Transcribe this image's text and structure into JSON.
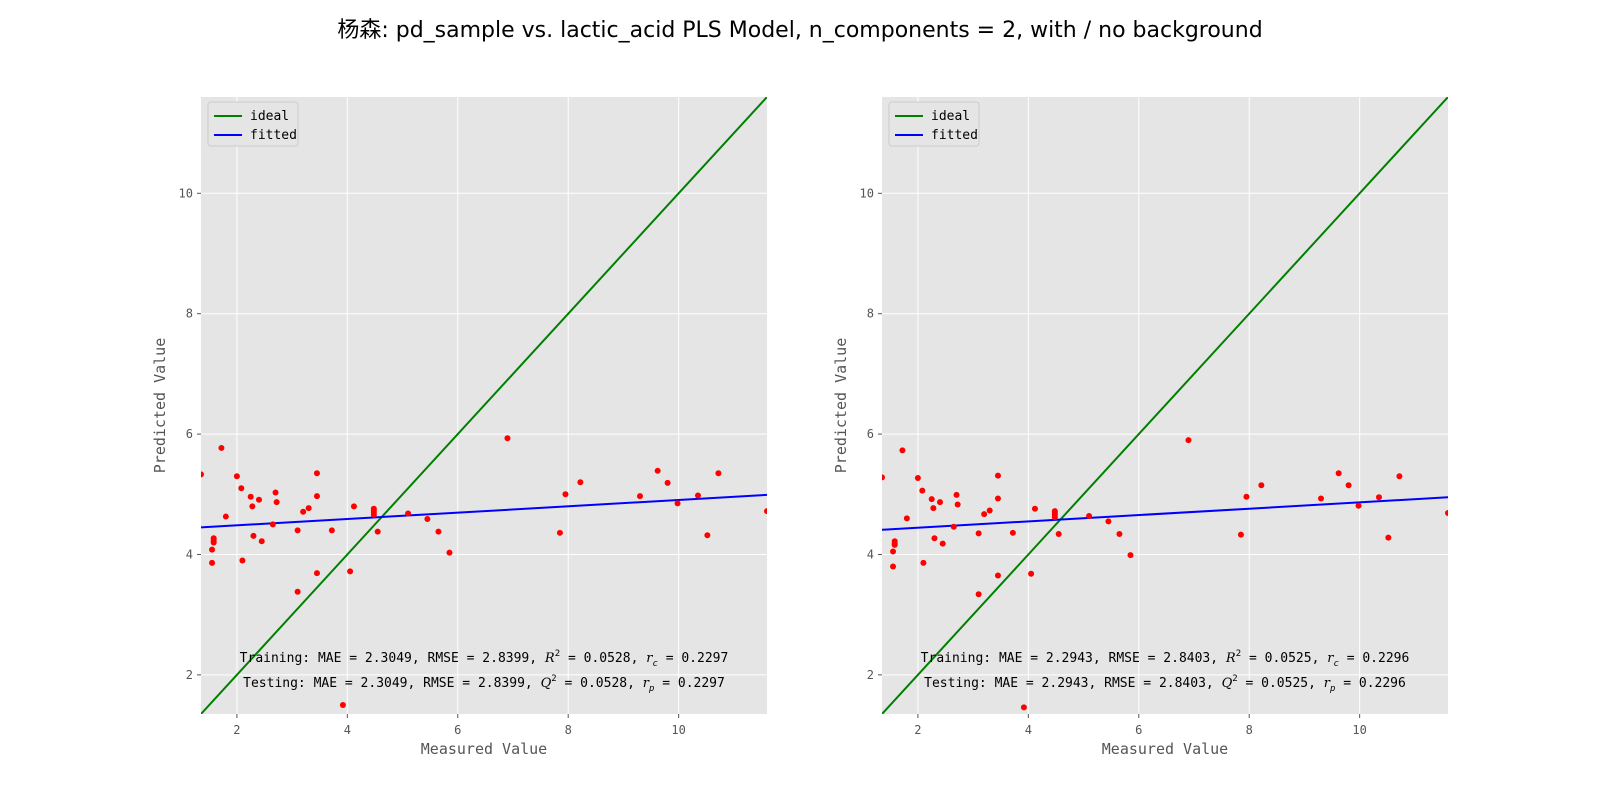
{
  "figure": {
    "title": "杨森: pd_sample vs. lactic_acid PLS Model, n_components = 2, with / no background",
    "colors": {
      "background": "#e5e5e5",
      "grid": "#ffffff",
      "ideal": "#008000",
      "fitted": "#0000ff",
      "points": "#ff0000",
      "legend_bg": "#e5e5e5"
    }
  },
  "chart_data": [
    {
      "type": "scatter",
      "xlabel": "Measured Value",
      "ylabel": "Predicted Value",
      "xlim": [
        1.35,
        11.6
      ],
      "ylim": [
        1.35,
        11.6
      ],
      "xticks": [
        2,
        4,
        6,
        8,
        10
      ],
      "yticks": [
        2,
        4,
        6,
        8,
        10
      ],
      "grid": true,
      "legend": {
        "placement": "upper-left",
        "entries": [
          "ideal",
          "fitted"
        ]
      },
      "ideal_line": {
        "x": [
          1.35,
          11.6
        ],
        "y": [
          1.35,
          11.6
        ]
      },
      "fitted_line": {
        "x": [
          1.35,
          11.6
        ],
        "y": [
          4.45,
          4.99
        ]
      },
      "points": [
        [
          1.35,
          5.33
        ],
        [
          1.58,
          4.27
        ],
        [
          1.58,
          4.23
        ],
        [
          1.58,
          4.2
        ],
        [
          1.55,
          4.08
        ],
        [
          1.55,
          3.86
        ],
        [
          1.72,
          5.77
        ],
        [
          1.8,
          4.63
        ],
        [
          2.0,
          5.3
        ],
        [
          2.08,
          5.1
        ],
        [
          2.1,
          3.9
        ],
        [
          2.25,
          4.96
        ],
        [
          2.28,
          4.8
        ],
        [
          2.3,
          4.31
        ],
        [
          2.4,
          4.91
        ],
        [
          2.45,
          4.22
        ],
        [
          2.65,
          4.5
        ],
        [
          2.7,
          5.03
        ],
        [
          2.72,
          4.87
        ],
        [
          3.1,
          4.4
        ],
        [
          3.1,
          3.38
        ],
        [
          3.2,
          4.71
        ],
        [
          3.3,
          4.77
        ],
        [
          3.45,
          5.35
        ],
        [
          3.45,
          4.97
        ],
        [
          3.45,
          3.69
        ],
        [
          3.72,
          4.4
        ],
        [
          4.05,
          3.72
        ],
        [
          4.12,
          4.8
        ],
        [
          3.92,
          1.5
        ],
        [
          4.48,
          4.76
        ],
        [
          4.48,
          4.73
        ],
        [
          4.48,
          4.7
        ],
        [
          4.48,
          4.66
        ],
        [
          4.55,
          4.38
        ],
        [
          5.1,
          4.68
        ],
        [
          5.45,
          4.59
        ],
        [
          5.65,
          4.38
        ],
        [
          5.85,
          4.03
        ],
        [
          6.9,
          5.93
        ],
        [
          7.85,
          4.36
        ],
        [
          7.95,
          5.0
        ],
        [
          8.22,
          5.2
        ],
        [
          9.3,
          4.97
        ],
        [
          9.62,
          5.39
        ],
        [
          9.8,
          5.19
        ],
        [
          9.98,
          4.85
        ],
        [
          10.35,
          4.98
        ],
        [
          10.52,
          4.32
        ],
        [
          10.72,
          5.35
        ],
        [
          11.6,
          4.72
        ]
      ],
      "metrics": {
        "training": "Training: MAE = 2.3049, RMSE = 2.8399, R² = 0.0528, rc = 0.2297",
        "training_parts": {
          "lead": "Training: MAE = 2.3049, RMSE = 2.8399, ",
          "stat": "R",
          "stat_sup": "2",
          "stat_val": " = 0.0528, ",
          "r": "r",
          "r_sub": "c",
          "r_val": " = 0.2297"
        },
        "testing": "Testing: MAE = 2.3049, RMSE = 2.8399, Q² = 0.0528, rp = 0.2297",
        "testing_parts": {
          "lead": "Testing: MAE = 2.3049, RMSE = 2.8399, ",
          "stat": "Q",
          "stat_sup": "2",
          "stat_val": " = 0.0528, ",
          "r": "r",
          "r_sub": "p",
          "r_val": " = 0.2297"
        }
      }
    },
    {
      "type": "scatter",
      "xlabel": "Measured Value",
      "ylabel": "Predicted Value",
      "xlim": [
        1.35,
        11.6
      ],
      "ylim": [
        1.35,
        11.6
      ],
      "xticks": [
        2,
        4,
        6,
        8,
        10
      ],
      "yticks": [
        2,
        4,
        6,
        8,
        10
      ],
      "grid": true,
      "legend": {
        "placement": "upper-left",
        "entries": [
          "ideal",
          "fitted"
        ]
      },
      "ideal_line": {
        "x": [
          1.35,
          11.6
        ],
        "y": [
          1.35,
          11.6
        ]
      },
      "fitted_line": {
        "x": [
          1.35,
          11.6
        ],
        "y": [
          4.41,
          4.95
        ]
      },
      "points": [
        [
          1.35,
          5.28
        ],
        [
          1.58,
          4.22
        ],
        [
          1.58,
          4.18
        ],
        [
          1.58,
          4.16
        ],
        [
          1.55,
          4.05
        ],
        [
          1.55,
          3.8
        ],
        [
          1.72,
          5.73
        ],
        [
          1.8,
          4.6
        ],
        [
          2.0,
          5.27
        ],
        [
          2.08,
          5.06
        ],
        [
          2.1,
          3.86
        ],
        [
          2.25,
          4.92
        ],
        [
          2.28,
          4.77
        ],
        [
          2.3,
          4.27
        ],
        [
          2.4,
          4.87
        ],
        [
          2.45,
          4.18
        ],
        [
          2.65,
          4.46
        ],
        [
          2.7,
          4.99
        ],
        [
          2.72,
          4.83
        ],
        [
          3.1,
          4.35
        ],
        [
          3.1,
          3.34
        ],
        [
          3.2,
          4.67
        ],
        [
          3.3,
          4.73
        ],
        [
          3.45,
          5.31
        ],
        [
          3.45,
          4.93
        ],
        [
          3.45,
          3.65
        ],
        [
          3.72,
          4.36
        ],
        [
          4.05,
          3.68
        ],
        [
          4.12,
          4.76
        ],
        [
          3.92,
          1.46
        ],
        [
          4.48,
          4.72
        ],
        [
          4.48,
          4.69
        ],
        [
          4.48,
          4.66
        ],
        [
          4.48,
          4.62
        ],
        [
          4.55,
          4.34
        ],
        [
          5.1,
          4.64
        ],
        [
          5.45,
          4.55
        ],
        [
          5.65,
          4.34
        ],
        [
          5.85,
          3.99
        ],
        [
          6.9,
          5.9
        ],
        [
          7.85,
          4.33
        ],
        [
          7.95,
          4.96
        ],
        [
          8.22,
          5.15
        ],
        [
          9.3,
          4.93
        ],
        [
          9.62,
          5.35
        ],
        [
          9.8,
          5.15
        ],
        [
          9.98,
          4.81
        ],
        [
          10.35,
          4.95
        ],
        [
          10.52,
          4.28
        ],
        [
          10.72,
          5.3
        ],
        [
          11.6,
          4.69
        ]
      ],
      "metrics": {
        "training": "Training: MAE = 2.2943, RMSE = 2.8403, R² = 0.0525, rc = 0.2296",
        "training_parts": {
          "lead": "Training: MAE = 2.2943, RMSE = 2.8403, ",
          "stat": "R",
          "stat_sup": "2",
          "stat_val": " = 0.0525, ",
          "r": "r",
          "r_sub": "c",
          "r_val": " = 0.2296"
        },
        "testing": "Testing: MAE = 2.2943, RMSE = 2.8403, Q² = 0.0525, rp = 0.2296",
        "testing_parts": {
          "lead": "Testing: MAE = 2.2943, RMSE = 2.8403, ",
          "stat": "Q",
          "stat_sup": "2",
          "stat_val": " = 0.0525, ",
          "r": "r",
          "r_sub": "p",
          "r_val": " = 0.2296"
        }
      }
    }
  ]
}
